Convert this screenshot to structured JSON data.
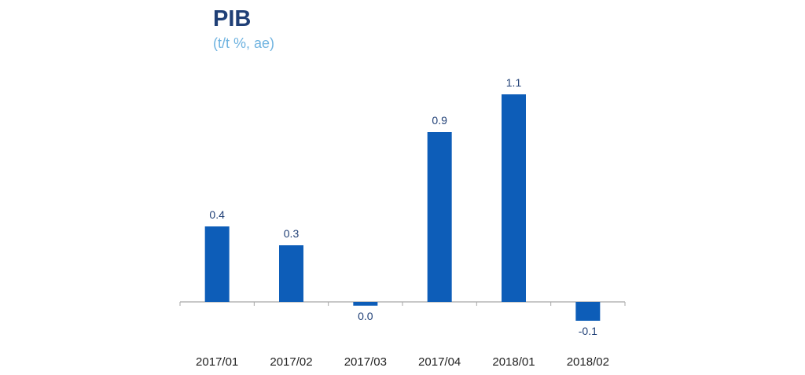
{
  "chart_data": {
    "type": "bar",
    "title": "PIB",
    "subtitle": "(t/t %, ae)",
    "categories": [
      "2017/01",
      "2017/02",
      "2017/03",
      "2017/04",
      "2018/01",
      "2018/02"
    ],
    "values": [
      0.4,
      0.3,
      -0.02,
      0.9,
      1.1,
      -0.1
    ],
    "data_labels": [
      "0.4",
      "0.3",
      "0.0",
      "0.9",
      "1.1",
      "-0.1"
    ],
    "ylim": [
      -0.2,
      1.2
    ],
    "grid": false,
    "bar_color": "#0d5db8",
    "axis_color": "#a6a6a6",
    "label_color": "#1f3f76"
  }
}
